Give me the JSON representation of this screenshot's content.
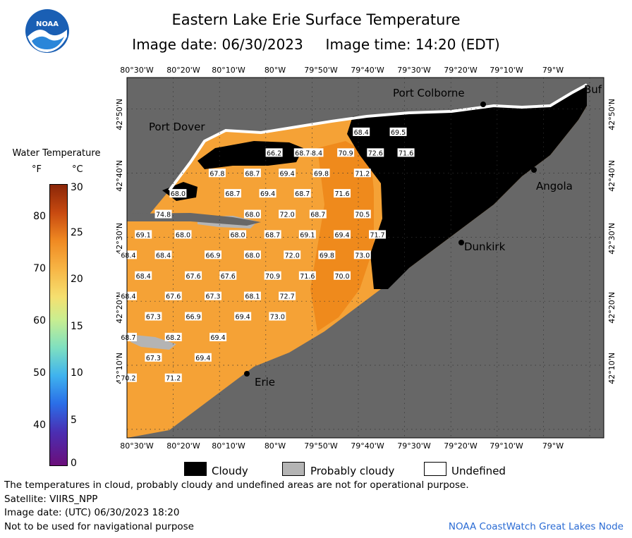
{
  "header": {
    "title": "Eastern Lake Erie Surface Temperature",
    "subtitle": "Image date: 06/30/2023     Image time: 14:20 (EDT)"
  },
  "logo": {
    "icon": "noaa-logo-icon",
    "text": "NOAA"
  },
  "legend": {
    "title": "Water Temperature",
    "f_unit": "°F",
    "c_unit": "°C",
    "f_ticks": [
      "80",
      "70",
      "60",
      "50",
      "40"
    ],
    "c_ticks": [
      "30",
      "25",
      "20",
      "15",
      "10",
      "5",
      "0"
    ]
  },
  "axes": {
    "lon_labels": [
      "80°30'W",
      "80°20'W",
      "80°10'W",
      "80°W",
      "79°50'W",
      "79°40'W",
      "79°30'W",
      "79°20'W",
      "79°10'W",
      "79°W"
    ],
    "lat_labels": [
      "42°50'N",
      "42°40'N",
      "42°30'N",
      "42°20'N",
      "42°10'N"
    ]
  },
  "cities": {
    "port_colborne": "Port Colborne",
    "port_dover": "Port Dover",
    "angola": "Angola",
    "dunkirk": "Dunkirk",
    "erie": "Erie",
    "buffalo": "Buf"
  },
  "temps": [
    {
      "v": "68.4",
      "lon": -79.656,
      "lat": 42.772
    },
    {
      "v": "69.5",
      "lon": -79.523,
      "lat": 42.772
    },
    {
      "v": "68.4",
      "lon": -79.823,
      "lat": 42.718
    },
    {
      "v": "66.2",
      "lon": -79.97,
      "lat": 42.718
    },
    {
      "v": "68.7",
      "lon": -79.868,
      "lat": 42.718
    },
    {
      "v": "70.9",
      "lon": -79.712,
      "lat": 42.718
    },
    {
      "v": "72.6",
      "lon": -79.605,
      "lat": 42.718
    },
    {
      "v": "71.6",
      "lon": -79.495,
      "lat": 42.718
    },
    {
      "v": "67.8",
      "lon": -80.175,
      "lat": 42.665
    },
    {
      "v": "68.7",
      "lon": -80.048,
      "lat": 42.665
    },
    {
      "v": "69.4",
      "lon": -79.923,
      "lat": 42.665
    },
    {
      "v": "69.8",
      "lon": -79.8,
      "lat": 42.665
    },
    {
      "v": "71.2",
      "lon": -79.652,
      "lat": 42.665
    },
    {
      "v": "68.0",
      "lon": -80.316,
      "lat": 42.612
    },
    {
      "v": "68.7",
      "lon": -80.119,
      "lat": 42.612
    },
    {
      "v": "69.4",
      "lon": -79.993,
      "lat": 42.612
    },
    {
      "v": "68.7",
      "lon": -79.868,
      "lat": 42.612
    },
    {
      "v": "71.6",
      "lon": -79.725,
      "lat": 42.612
    },
    {
      "v": "74.8",
      "lon": -80.369,
      "lat": 42.558
    },
    {
      "v": "68.0",
      "lon": -80.048,
      "lat": 42.558
    },
    {
      "v": "72.0",
      "lon": -79.923,
      "lat": 42.558
    },
    {
      "v": "68.7",
      "lon": -79.812,
      "lat": 42.558
    },
    {
      "v": "70.5",
      "lon": -79.652,
      "lat": 42.558
    },
    {
      "v": "69.1",
      "lon": -80.441,
      "lat": 42.505
    },
    {
      "v": "68.0",
      "lon": -80.298,
      "lat": 42.505
    },
    {
      "v": "68.0",
      "lon": -80.101,
      "lat": 42.505
    },
    {
      "v": "68.7",
      "lon": -79.975,
      "lat": 42.505
    },
    {
      "v": "69.1",
      "lon": -79.85,
      "lat": 42.505
    },
    {
      "v": "69.4",
      "lon": -79.725,
      "lat": 42.505
    },
    {
      "v": "71.7",
      "lon": -79.598,
      "lat": 42.505
    },
    {
      "v": "68.4",
      "lon": -80.495,
      "lat": 42.452
    },
    {
      "v": "68.4",
      "lon": -80.369,
      "lat": 42.452
    },
    {
      "v": "66.9",
      "lon": -80.19,
      "lat": 42.452
    },
    {
      "v": "68.0",
      "lon": -80.048,
      "lat": 42.452
    },
    {
      "v": "72.0",
      "lon": -79.905,
      "lat": 42.452
    },
    {
      "v": "69.8",
      "lon": -79.78,
      "lat": 42.452
    },
    {
      "v": "73.0",
      "lon": -79.652,
      "lat": 42.452
    },
    {
      "v": "68.4",
      "lon": -80.441,
      "lat": 42.398
    },
    {
      "v": "67.6",
      "lon": -80.261,
      "lat": 42.398
    },
    {
      "v": "67.6",
      "lon": -80.136,
      "lat": 42.398
    },
    {
      "v": "70.9",
      "lon": -79.975,
      "lat": 42.398
    },
    {
      "v": "71.6",
      "lon": -79.85,
      "lat": 42.398
    },
    {
      "v": "70.0",
      "lon": -79.725,
      "lat": 42.398
    },
    {
      "v": "68.4",
      "lon": -80.495,
      "lat": 42.345
    },
    {
      "v": "67.6",
      "lon": -80.333,
      "lat": 42.345
    },
    {
      "v": "67.3",
      "lon": -80.19,
      "lat": 42.345
    },
    {
      "v": "68.1",
      "lon": -80.048,
      "lat": 42.345
    },
    {
      "v": "72.7",
      "lon": -79.923,
      "lat": 42.345
    },
    {
      "v": "67.3",
      "lon": -80.405,
      "lat": 42.292
    },
    {
      "v": "66.9",
      "lon": -80.261,
      "lat": 42.292
    },
    {
      "v": "69.4",
      "lon": -80.083,
      "lat": 42.292
    },
    {
      "v": "73.0",
      "lon": -79.958,
      "lat": 42.292
    },
    {
      "v": "68.7",
      "lon": -80.495,
      "lat": 42.238
    },
    {
      "v": "68.2",
      "lon": -80.333,
      "lat": 42.238
    },
    {
      "v": "69.4",
      "lon": -80.172,
      "lat": 42.238
    },
    {
      "v": "67.3",
      "lon": -80.405,
      "lat": 42.185
    },
    {
      "v": "69.4",
      "lon": -80.226,
      "lat": 42.185
    },
    {
      "v": "70.2",
      "lon": -80.495,
      "lat": 42.132
    },
    {
      "v": "71.2",
      "lon": -80.333,
      "lat": 42.132
    }
  ],
  "key": {
    "cloudy": "Cloudy",
    "probably_cloudy": "Probably cloudy",
    "undefined": "Undefined"
  },
  "footer": {
    "disclaimer": "The temperatures in cloud, probably cloudy and undefined areas are not for operational purpose.",
    "satellite": "Satellite: VIIRS_NPP",
    "utc_date": "Image date: (UTC) 06/30/2023  18:20",
    "nav_warning": "Not to be used for navigational purpose",
    "credit": "NOAA CoastWatch Great Lakes Node"
  },
  "colors": {
    "land": "#676767",
    "cloud": "#000000",
    "probably_cloudy": "#b4b4b4",
    "undefined": "#ffffff",
    "warm_water": "#f5a236",
    "hot_water": "#ef8a1c",
    "credit": "#2a6bd4"
  }
}
